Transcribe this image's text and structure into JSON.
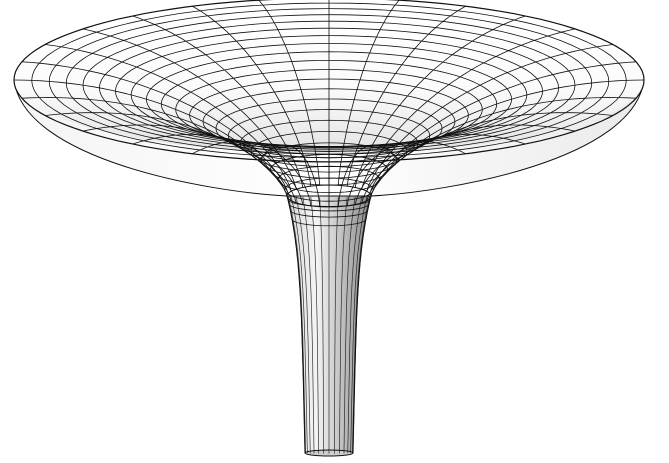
{
  "figure": {
    "kind": "wireframe surface of revolution",
    "form": "funnel",
    "meridian_count": 28,
    "latitude_ring_count": 20,
    "colors": {
      "background": "#ffffff",
      "surface_light": "#f7f7f7",
      "surface_dark": "#9a9a9a",
      "mesh_line": "#111111"
    }
  }
}
